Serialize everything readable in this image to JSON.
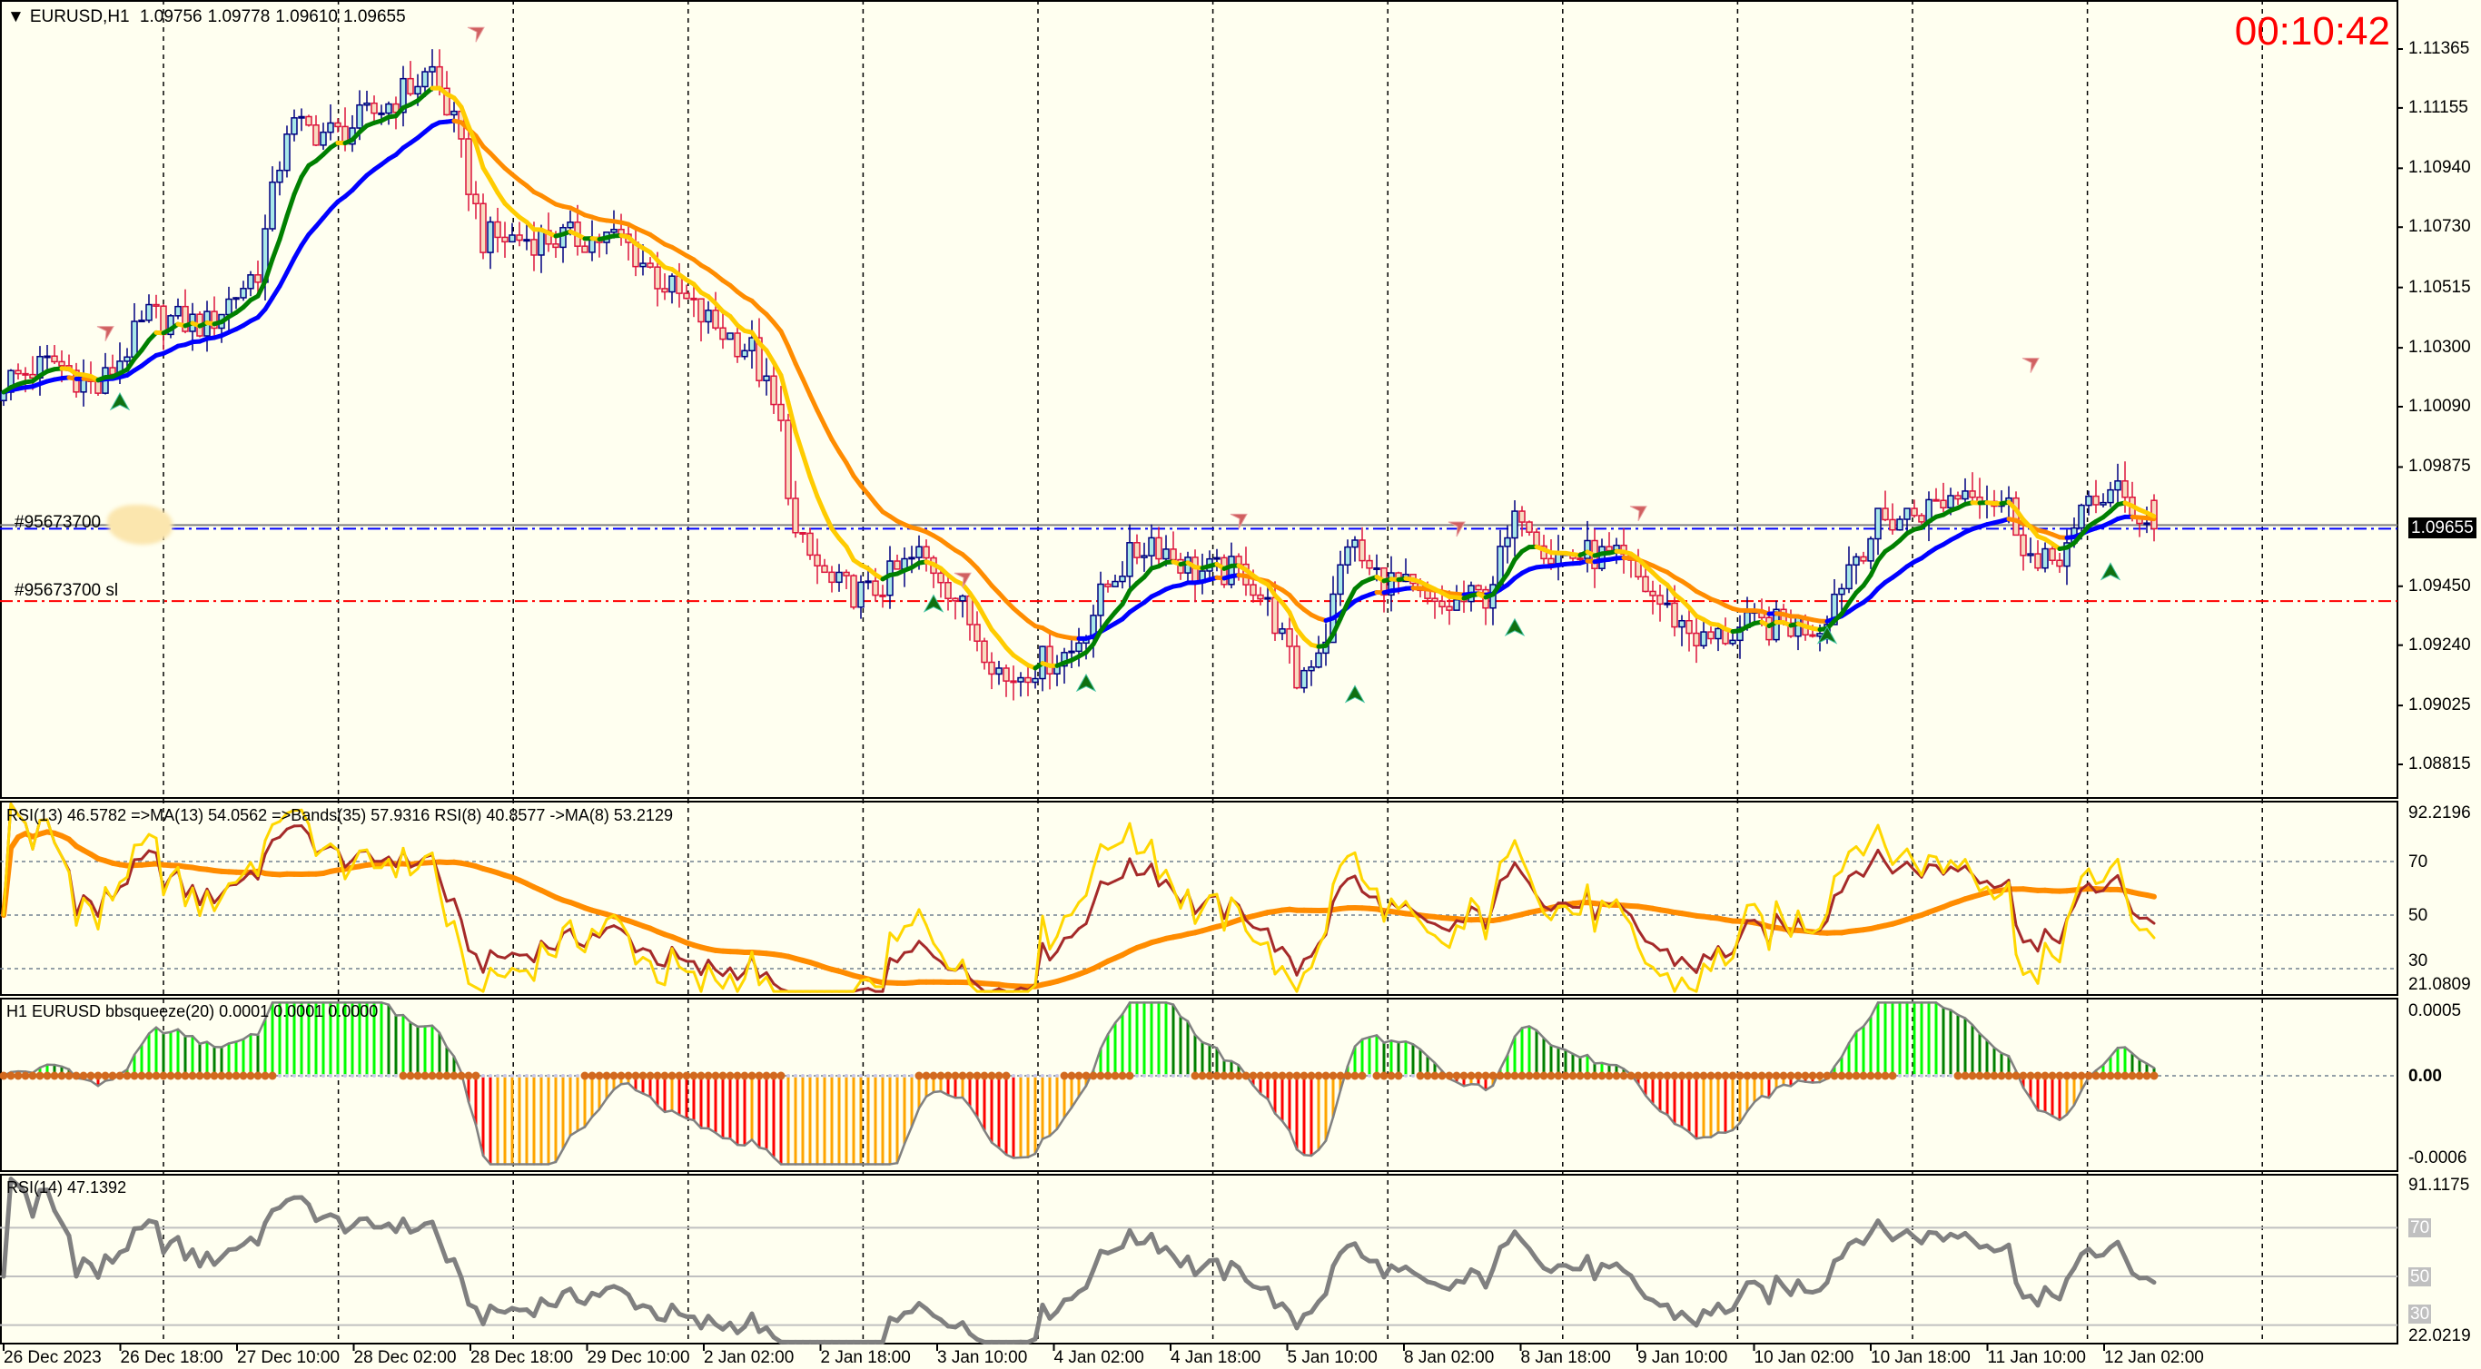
{
  "header": {
    "symbol": "EURUSD,H1",
    "open": "1.09756",
    "high": "1.09778",
    "low": "1.09610",
    "close": "1.09655"
  },
  "clock": "00:10:42",
  "orders": {
    "entry_label": "#95673700",
    "entry_price": 1.09655,
    "sl_label": "#95673700 sl",
    "sl_price": 1.09397
  },
  "price_axis": [
    "1.11365",
    "1.11155",
    "1.10940",
    "1.10730",
    "1.10515",
    "1.10300",
    "1.10090",
    "1.09875",
    "1.09450",
    "1.09240",
    "1.09025",
    "1.08815"
  ],
  "current_price": "1.09655",
  "rsi_pane": {
    "title": "RSI(13) 46.5782  =>MA(13) 54.0562  =>Bands(35) 57.9316  RSI(8) 40.8577  ->MA(8) 53.2129",
    "max": "92.2196",
    "min": "21.0809",
    "levels": [
      "70",
      "50",
      "30"
    ]
  },
  "squeeze_pane": {
    "title": "H1 EURUSD bbsqueeze(20) 0.0001 0.0001 0.0000",
    "max": "0.0005",
    "zero": "0.00",
    "min": "-0.0006"
  },
  "rsi14_pane": {
    "title": "RSI(14) 47.1392",
    "max": "91.1175",
    "min": "22.0219",
    "levels": [
      "70",
      "50",
      "30"
    ]
  },
  "time_axis": [
    "26 Dec 2023",
    "26 Dec 18:00",
    "27 Dec 10:00",
    "28 Dec 02:00",
    "28 Dec 18:00",
    "29 Dec 10:00",
    "2 Jan 02:00",
    "2 Jan 18:00",
    "3 Jan 10:00",
    "4 Jan 02:00",
    "4 Jan 18:00",
    "5 Jan 10:00",
    "8 Jan 02:00",
    "8 Jan 18:00",
    "9 Jan 10:00",
    "10 Jan 02:00",
    "10 Jan 18:00",
    "11 Jan 10:00",
    "12 Jan 02:00"
  ],
  "colors": {
    "bg": "#fffff0",
    "bull_body": "#a8e8e8",
    "bull_border": "#000080",
    "bear_body": "#f8dcc0",
    "bear_border": "#dc143c",
    "fast_up": "#008000",
    "fast_down": "#ffcc00",
    "slow_up": "#0000ff",
    "slow_down": "#ff8c00",
    "rsi13": "#a52a2a",
    "rsi8": "#ffd700",
    "rsi_ma": "#ff8c00",
    "rsi14": "#808080",
    "clock": "#ff0000"
  },
  "chart_data": {
    "type": "candlestick",
    "symbol": "EURUSD",
    "timeframe": "H1",
    "ylim": [
      1.08815,
      1.11365
    ],
    "bars": 297,
    "last_bar": {
      "open": 1.09756,
      "high": 1.09778,
      "low": 1.0961,
      "close": 1.09655
    },
    "close_keypoints": [
      [
        0,
        1.1018
      ],
      [
        7,
        1.1025
      ],
      [
        13,
        1.1015
      ],
      [
        20,
        1.1041
      ],
      [
        28,
        1.1038
      ],
      [
        35,
        1.1058
      ],
      [
        39,
        1.1109
      ],
      [
        46,
        1.1106
      ],
      [
        53,
        1.1117
      ],
      [
        59,
        1.1129
      ],
      [
        62,
        1.1109
      ],
      [
        66,
        1.1069
      ],
      [
        72,
        1.1069
      ],
      [
        79,
        1.1069
      ],
      [
        85,
        1.1069
      ],
      [
        90,
        1.1055
      ],
      [
        96,
        1.1041
      ],
      [
        103,
        1.1029
      ],
      [
        107,
        1.1001
      ],
      [
        109,
        1.0962
      ],
      [
        114,
        1.0945
      ],
      [
        119,
        1.0942
      ],
      [
        126,
        1.0956
      ],
      [
        129,
        1.095
      ],
      [
        134,
        1.0928
      ],
      [
        138,
        1.0911
      ],
      [
        141,
        1.0916
      ],
      [
        147,
        1.0922
      ],
      [
        153,
        1.095
      ],
      [
        158,
        1.0962
      ],
      [
        164,
        1.095
      ],
      [
        171,
        1.095
      ],
      [
        175,
        1.0933
      ],
      [
        178,
        1.0911
      ],
      [
        182,
        1.0928
      ],
      [
        185,
        1.0962
      ],
      [
        188,
        1.095
      ],
      [
        193,
        1.0944
      ],
      [
        197,
        1.0936
      ],
      [
        204,
        1.0942
      ],
      [
        209,
        1.0973
      ],
      [
        213,
        1.0956
      ],
      [
        219,
        1.0956
      ],
      [
        223,
        1.0953
      ],
      [
        229,
        1.0936
      ],
      [
        234,
        1.0925
      ],
      [
        241,
        1.0931
      ],
      [
        250,
        1.0931
      ],
      [
        254,
        1.0953
      ],
      [
        258,
        1.0967
      ],
      [
        265,
        1.0973
      ],
      [
        271,
        1.0981
      ],
      [
        276,
        1.0973
      ],
      [
        280,
        1.095
      ],
      [
        285,
        1.0962
      ],
      [
        287,
        1.0976
      ],
      [
        291,
        1.0978
      ],
      [
        296,
        1.09655
      ]
    ],
    "signals": [
      {
        "type": "sell",
        "bar": 65,
        "price": 1.11416
      },
      {
        "type": "sell",
        "bar": 14,
        "price": 1.1035
      },
      {
        "type": "sell",
        "bar": 170,
        "price": 1.09681
      },
      {
        "type": "sell",
        "bar": 200,
        "price": 1.09653
      },
      {
        "type": "sell",
        "bar": 225,
        "price": 1.09709
      },
      {
        "type": "sell",
        "bar": 279,
        "price": 1.10237
      },
      {
        "type": "sell",
        "bar": 132,
        "price": 1.09471
      },
      {
        "type": "buy",
        "bar": 16,
        "price": 1.10106
      },
      {
        "type": "buy",
        "bar": 128,
        "price": 1.09386
      },
      {
        "type": "buy",
        "bar": 149,
        "price": 1.09103
      },
      {
        "type": "buy",
        "bar": 186,
        "price": 1.09063
      },
      {
        "type": "buy",
        "bar": 208,
        "price": 1.09301
      },
      {
        "type": "buy",
        "bar": 251,
        "price": 1.09273
      },
      {
        "type": "buy",
        "bar": 290,
        "price": 1.095
      }
    ],
    "indicators": [
      "EMA fast (green up / gold down)",
      "EMA slow (blue up / orange down)",
      "RSI(13)",
      "RSI(8)",
      "MA of RSI",
      "bbsqueeze(20)",
      "RSI(14)"
    ]
  }
}
